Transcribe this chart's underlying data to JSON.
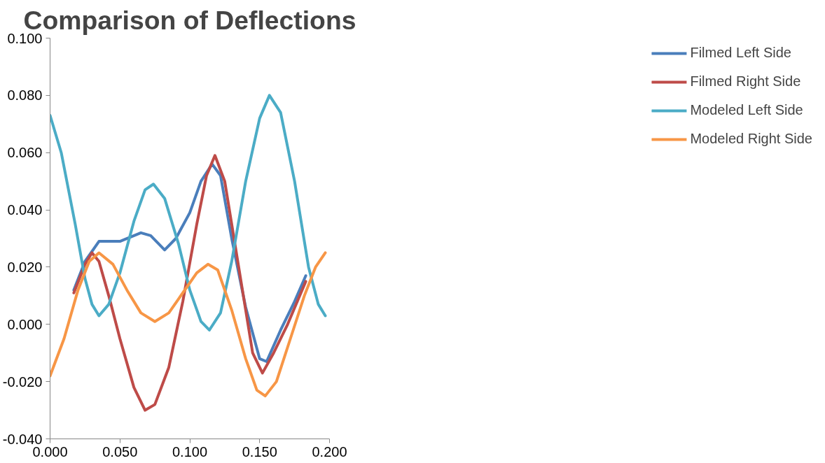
{
  "chart_data": {
    "type": "line",
    "title": "Comparison of Deflections",
    "xlim": [
      0,
      0.2
    ],
    "xticks": [
      {
        "value": 0,
        "label": "0.000"
      },
      {
        "value": 0.05,
        "label": "0.050"
      },
      {
        "value": 0.1,
        "label": "0.100"
      },
      {
        "value": 0.15,
        "label": "0.150"
      },
      {
        "value": 0.2,
        "label": "0.200"
      }
    ],
    "ylim": [
      -0.04,
      0.1
    ],
    "yticks": [
      {
        "value": -0.04,
        "label": "-0.040"
      },
      {
        "value": -0.02,
        "label": "-0.020"
      },
      {
        "value": 0,
        "label": "0.000"
      },
      {
        "value": 0.02,
        "label": "0.020"
      },
      {
        "value": 0.04,
        "label": "0.040"
      },
      {
        "value": 0.06,
        "label": "0.060"
      },
      {
        "value": 0.08,
        "label": "0.080"
      },
      {
        "value": 0.1,
        "label": "0.100"
      }
    ],
    "grid": false,
    "legend": "right",
    "marker": "none",
    "line_style": "solid",
    "series": [
      {
        "name": "Filmed Left Side",
        "color": "#4a7ebb",
        "x": [
          0.017,
          0.025,
          0.035,
          0.05,
          0.065,
          0.072,
          0.082,
          0.09,
          0.1,
          0.108,
          0.116,
          0.122,
          0.13,
          0.14,
          0.15,
          0.155,
          0.165,
          0.175,
          0.183
        ],
        "values": [
          0.012,
          0.022,
          0.029,
          0.029,
          0.032,
          0.031,
          0.026,
          0.03,
          0.039,
          0.05,
          0.056,
          0.052,
          0.03,
          0.006,
          -0.012,
          -0.013,
          -0.002,
          0.008,
          0.017
        ]
      },
      {
        "name": "Filmed Right Side",
        "color": "#be4b48",
        "x": [
          0.017,
          0.025,
          0.03,
          0.035,
          0.042,
          0.05,
          0.06,
          0.068,
          0.075,
          0.085,
          0.095,
          0.105,
          0.112,
          0.118,
          0.125,
          0.135,
          0.145,
          0.152,
          0.16,
          0.17,
          0.183
        ],
        "values": [
          0.011,
          0.021,
          0.025,
          0.022,
          0.01,
          -0.005,
          -0.022,
          -0.03,
          -0.028,
          -0.015,
          0.008,
          0.035,
          0.052,
          0.059,
          0.05,
          0.02,
          -0.01,
          -0.017,
          -0.01,
          0.0,
          0.015
        ]
      },
      {
        "name": "Modeled Left Side",
        "color": "#4bacc6",
        "x": [
          0.0,
          0.008,
          0.018,
          0.025,
          0.03,
          0.035,
          0.042,
          0.05,
          0.06,
          0.068,
          0.074,
          0.082,
          0.092,
          0.1,
          0.108,
          0.114,
          0.122,
          0.13,
          0.14,
          0.15,
          0.157,
          0.165,
          0.175,
          0.185,
          0.192,
          0.197
        ],
        "values": [
          0.073,
          0.06,
          0.035,
          0.016,
          0.007,
          0.003,
          0.007,
          0.018,
          0.036,
          0.047,
          0.049,
          0.044,
          0.028,
          0.012,
          0.001,
          -0.002,
          0.004,
          0.022,
          0.05,
          0.072,
          0.08,
          0.074,
          0.05,
          0.02,
          0.007,
          0.003
        ]
      },
      {
        "name": "Modeled Right Side",
        "color": "#f79646",
        "x": [
          0.0,
          0.01,
          0.02,
          0.028,
          0.035,
          0.045,
          0.055,
          0.065,
          0.075,
          0.085,
          0.095,
          0.105,
          0.113,
          0.12,
          0.13,
          0.14,
          0.148,
          0.154,
          0.162,
          0.172,
          0.182,
          0.19,
          0.197
        ],
        "values": [
          -0.018,
          -0.005,
          0.012,
          0.022,
          0.025,
          0.021,
          0.012,
          0.004,
          0.001,
          0.004,
          0.011,
          0.018,
          0.021,
          0.019,
          0.005,
          -0.012,
          -0.023,
          -0.025,
          -0.02,
          -0.005,
          0.01,
          0.02,
          0.025
        ]
      }
    ]
  }
}
